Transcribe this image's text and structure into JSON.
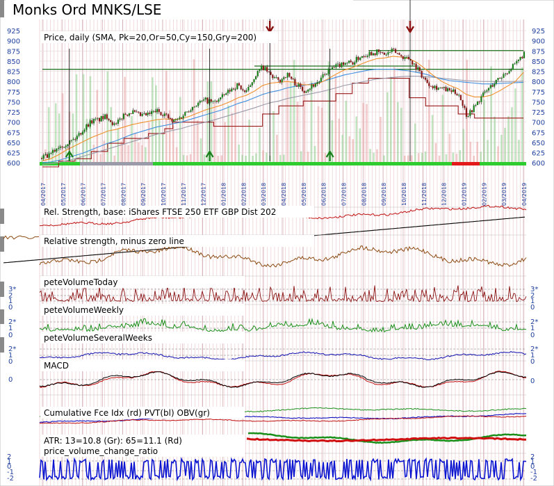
{
  "chart_data": {
    "type": "line",
    "title": "Monks Ord MNKS/LSE",
    "x_dates": [
      "04/2017",
      "05/2017",
      "06/2017",
      "07/2017",
      "08/2017",
      "09/2017",
      "10/2017",
      "11/2017",
      "12/2017",
      "01/2018",
      "02/2018",
      "03/2018",
      "04/2018",
      "05/2018",
      "06/2018",
      "07/2018",
      "08/2018",
      "09/2018",
      "10/2018",
      "11/2018",
      "12/2018",
      "01/2019",
      "02/2019",
      "03/2019",
      "04/2019"
    ],
    "price_panel": {
      "label": "Price, daily (SMA, Pk=20,Or=50,Cy=150,Gry=200)",
      "y_ticks": [
        600,
        625,
        650,
        675,
        700,
        725,
        750,
        775,
        800,
        825,
        850,
        875,
        900,
        925
      ],
      "ylim": [
        590,
        932
      ],
      "close": [
        612,
        618,
        640,
        648,
        658,
        680,
        702,
        706,
        715,
        690,
        718,
        726,
        716,
        718,
        728,
        720,
        700,
        712,
        732,
        745,
        754,
        748,
        760,
        778,
        792,
        770,
        812,
        836,
        815,
        800,
        818,
        796,
        778,
        788,
        802,
        826,
        836,
        848,
        846,
        862,
        870,
        872,
        866,
        876,
        862,
        856,
        830,
        800,
        788,
        782,
        776,
        770,
        716,
        740,
        768,
        790,
        808,
        826,
        842,
        870
      ],
      "sma_orange": [
        605,
        610,
        620,
        632,
        642,
        652,
        662,
        670,
        678,
        682,
        688,
        694,
        698,
        702,
        706,
        708,
        706,
        708,
        714,
        722,
        730,
        736,
        742,
        750,
        760,
        766,
        776,
        790,
        796,
        798,
        800,
        798,
        792,
        792,
        796,
        806,
        818,
        828,
        834,
        842,
        850,
        856,
        858,
        862,
        860,
        856,
        846,
        830,
        814,
        800,
        790,
        782,
        768,
        762,
        762,
        766,
        776,
        788,
        800,
        822
      ],
      "sma_blue": [
        600,
        602,
        606,
        612,
        618,
        624,
        632,
        640,
        648,
        654,
        662,
        670,
        676,
        682,
        688,
        692,
        696,
        700,
        706,
        712,
        718,
        724,
        730,
        738,
        746,
        752,
        760,
        768,
        774,
        778,
        784,
        788,
        790,
        794,
        798,
        804,
        810,
        816,
        820,
        824,
        828,
        830,
        830,
        830,
        828,
        826,
        822,
        818,
        812,
        806,
        802,
        800,
        798,
        796,
        794,
        794,
        795,
        796,
        797,
        798
      ],
      "sma_gray": [
        596,
        598,
        601,
        605,
        610,
        616,
        622,
        628,
        634,
        640,
        646,
        652,
        658,
        664,
        670,
        675,
        680,
        684,
        690,
        695,
        700,
        705,
        711,
        717,
        723,
        729,
        735,
        742,
        748,
        752,
        758,
        762,
        766,
        770,
        774,
        779,
        784,
        790,
        794,
        798,
        802,
        806,
        808,
        810,
        812,
        813,
        813,
        812,
        810,
        808,
        806,
        804,
        802,
        801,
        800,
        800,
        800,
        800,
        800,
        801
      ],
      "support_resistance": [
        {
          "from_idx": 0,
          "to_idx": 59,
          "value": 830
        },
        {
          "from_idx": 26,
          "to_idx": 46,
          "value": 838
        },
        {
          "from_idx": 40,
          "to_idx": 59,
          "value": 876
        }
      ],
      "stepped_stop": [
        590,
        590,
        604,
        604,
        610,
        610,
        628,
        628,
        648,
        648,
        660,
        660,
        660,
        672,
        672,
        684,
        700,
        700,
        700,
        700,
        700,
        690,
        690,
        690,
        690,
        690,
        690,
        720,
        720,
        740,
        740,
        740,
        752,
        752,
        752,
        752,
        770,
        770,
        796,
        796,
        808,
        808,
        808,
        808,
        808,
        760,
        760,
        740,
        740,
        740,
        740,
        720,
        720,
        710,
        710,
        710,
        710,
        710,
        710,
        710
      ],
      "volume_bars": true,
      "arrow_up_dates": [
        "05/2017",
        "12/2017",
        "06/2018"
      ],
      "arrow_down_dates": [
        "03/2018",
        "10/2018"
      ]
    },
    "panels": [
      {
        "label": "Rel. Strength, base: iShares FTSE 250 ETF GBP Dist 202"
      },
      {
        "label": "Relative strength, minus zero line"
      },
      {
        "label": "peteVolumeToday",
        "y_ticks": [
          "3*",
          "2",
          "1",
          "0"
        ]
      },
      {
        "label": "peteVolumeWeekly",
        "y_ticks": [
          "2*",
          "1",
          "0"
        ]
      },
      {
        "label": "peteVolumeSeveralWeeks",
        "y_ticks": [
          "2*",
          "1",
          "0"
        ]
      },
      {
        "label": "MACD",
        "y_ticks": [
          "0"
        ]
      },
      {
        "label": "Cumulative Fce Idx (rd) PVT(bl) OBV(gr)"
      },
      {
        "label": "ATR: 13=10.8 (Gr): 65=11.1 (Rd)"
      },
      {
        "label": "price_volume_change_ratio",
        "y_ticks": [
          "2",
          "1",
          "0",
          "-1",
          "-2"
        ]
      }
    ],
    "colors": {
      "up_candle": "#1a7f1a",
      "down_candle": "#8a1a1a",
      "sma_orange": "#f0902a",
      "sma_blue": "#3f8fdf",
      "sma_gray": "#9a9aaa",
      "rs_line": "#c01010",
      "rs_base": "#000000",
      "rsz_line": "#8b4a10",
      "vol_today": "#8b1010",
      "vol_weekly": "#1a8f1a",
      "vol_several": "#1010b0",
      "macd": "#000000",
      "macd_signal": "#c01010",
      "obv": "#1a8f1a",
      "pvt": "#1010c0",
      "fce": "#c01010",
      "atr_green": "#1a8f1a",
      "atr_red": "#d01010",
      "pvcr": "#0a14d0",
      "grid": "#e8bfc4"
    }
  }
}
